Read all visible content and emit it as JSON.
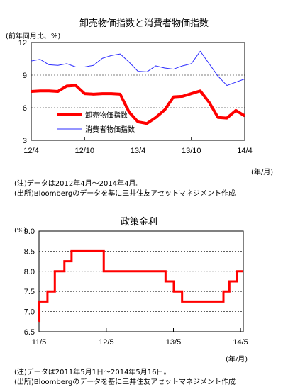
{
  "chart_data": [
    {
      "type": "line",
      "title": "卸売物価指数と消費者物価指数",
      "ylabel": "(前年同月比、%)",
      "xlabel": "",
      "x_unit": "(年/月)",
      "ylim": [
        3,
        12
      ],
      "yticks": [
        "3",
        "6",
        "9",
        "12"
      ],
      "xticks": [
        "12/4",
        "12/10",
        "13/4",
        "13/10",
        "14/4"
      ],
      "x": [
        "12/4",
        "12/5",
        "12/6",
        "12/7",
        "12/8",
        "12/9",
        "12/10",
        "12/11",
        "12/12",
        "13/1",
        "13/2",
        "13/3",
        "13/4",
        "13/5",
        "13/6",
        "13/7",
        "13/8",
        "13/9",
        "13/10",
        "13/11",
        "13/12",
        "14/1",
        "14/2",
        "14/3",
        "14/4"
      ],
      "series": [
        {
          "name": "卸売物価指数",
          "color": "#ff0000",
          "values": [
            7.5,
            7.55,
            7.55,
            7.5,
            8.0,
            8.05,
            7.3,
            7.25,
            7.3,
            7.3,
            7.25,
            5.6,
            4.7,
            4.55,
            5.1,
            5.8,
            7.0,
            7.05,
            7.3,
            7.55,
            6.5,
            5.1,
            5.05,
            5.75,
            5.25
          ]
        },
        {
          "name": "消費者物価指数",
          "color": "#2b2bff",
          "values": [
            10.3,
            10.45,
            9.95,
            9.9,
            10.05,
            9.75,
            9.75,
            9.9,
            10.55,
            10.8,
            10.95,
            10.2,
            9.35,
            9.3,
            9.85,
            9.65,
            9.55,
            9.85,
            10.05,
            11.2,
            10.05,
            8.9,
            8.05,
            8.35,
            8.65
          ]
        }
      ],
      "note": "(注)データは2012年4月～2014年4月。",
      "source": "(出所)Bloombergのデータを基に三井住友アセットマネジメント作成"
    },
    {
      "type": "line",
      "step": true,
      "title": "政策金利",
      "ylabel": "(%)",
      "xlabel": "",
      "x_unit": "(年/月)",
      "ylim": [
        6.5,
        9.0
      ],
      "yticks": [
        "6.5",
        "7.0",
        "7.5",
        "8.0",
        "8.5",
        "9.0"
      ],
      "xticks": [
        "11/5",
        "12/5",
        "13/5",
        "14/5"
      ],
      "x_range": [
        "2011-05-01",
        "2014-05-16"
      ],
      "series": [
        {
          "name": "",
          "color": "#ff0000",
          "points": [
            [
              "2011-05-01",
              6.75
            ],
            [
              "2011-05-03",
              7.25
            ],
            [
              "2011-06-16",
              7.5
            ],
            [
              "2011-07-26",
              8.0
            ],
            [
              "2011-09-16",
              8.25
            ],
            [
              "2011-10-25",
              8.5
            ],
            [
              "2012-04-17",
              8.0
            ],
            [
              "2013-03-19",
              7.75
            ],
            [
              "2013-05-03",
              7.5
            ],
            [
              "2013-06-17",
              7.25
            ],
            [
              "2014-01-28",
              7.5
            ],
            [
              "2014-03-01",
              7.75
            ],
            [
              "2014-04-10",
              8.0
            ],
            [
              "2014-05-16",
              8.0
            ]
          ]
        }
      ],
      "note": "(注)データは2011年5月1日～2014年5月16日。",
      "source": "(出所)Bloombergのデータを基に三井住友アセットマネジメント作成"
    }
  ]
}
